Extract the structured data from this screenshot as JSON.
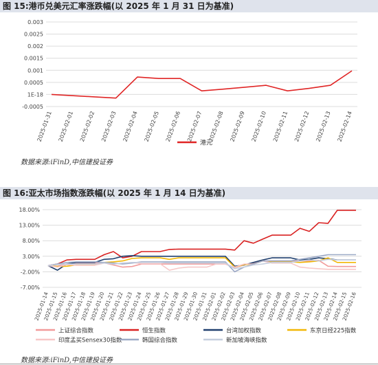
{
  "fig15": {
    "title": "图 15:港币兑美元汇率涨跌幅(以 2025 年 1 月 31 日为基准)",
    "source": "数据来源:iFinD,中信建投证券"
  },
  "fig16": {
    "title": "图 16:亚太市场指数涨跌幅(以 2025 年 1 月 14 日为基准)",
    "source": "数据来源:iFinD,中信建投证券"
  },
  "chart_data": [
    {
      "type": "line",
      "title": "",
      "xlabel": "",
      "ylabel": "",
      "x": [
        "2025-01-31",
        "2025-02-01",
        "2025-02-02",
        "2025-02-03",
        "2025-02-04",
        "2025-02-05",
        "2025-02-06",
        "2025-02-07",
        "2025-02-08",
        "2025-02-09",
        "2025-02-10",
        "2025-02-11",
        "2025-02-12",
        "2025-02-13",
        "2025-02-14"
      ],
      "y_ticks": [
        "0.003",
        "0.0025",
        "0.002",
        "0.0015",
        "0.001",
        "0.0005",
        "1E-18",
        "-0.0005"
      ],
      "ylim": [
        -0.0005,
        0.003
      ],
      "grid": true,
      "legend": "bottom",
      "series": [
        {
          "name": "港元",
          "color": "#e02424",
          "values": [
            0.0,
            -5e-05,
            -0.0001,
            -0.00015,
            0.00072,
            0.00066,
            0.00066,
            0.00015,
            0.00022,
            0.0003,
            0.00038,
            0.00015,
            0.00025,
            0.00038,
            0.00098
          ]
        }
      ]
    },
    {
      "type": "line",
      "title": "",
      "xlabel": "",
      "ylabel": "",
      "x": [
        "2025-01-14",
        "2025-01-15",
        "2025-01-16",
        "2025-01-17",
        "2025-01-18",
        "2025-01-19",
        "2025-01-20",
        "2025-01-21",
        "2025-01-22",
        "2025-01-23",
        "2025-01-24",
        "2025-01-25",
        "2025-01-26",
        "2025-01-27",
        "2025-01-28",
        "2025-01-29",
        "2025-01-30",
        "2025-01-31",
        "2025-02-01",
        "2025-02-02",
        "2025-02-03",
        "2025-02-04",
        "2025-02-05",
        "2025-02-06",
        "2025-02-07",
        "2025-02-08",
        "2025-02-09",
        "2025-02-10",
        "2025-02-11",
        "2025-02-12",
        "2025-02-13",
        "2025-02-14",
        "2025-02-15",
        "2025-02-16"
      ],
      "y_ticks": [
        "18.00%",
        "13.00%",
        "8.00%",
        "3.00%",
        "-2.00%",
        "-7.00%"
      ],
      "ylim": [
        -7,
        18
      ],
      "grid": true,
      "legend": "bottom",
      "series": [
        {
          "name": "上证综合指数",
          "color": "#f29a9a",
          "values": [
            0,
            -0.2,
            0.5,
            0.8,
            0.8,
            0.8,
            0.9,
            0.2,
            -0.5,
            -0.3,
            0.5,
            0.5,
            0.5,
            0.5,
            0.5,
            0.5,
            0.5,
            0.5,
            0.5,
            0.5,
            -0.6,
            0.2,
            0.8,
            1.5,
            1.5,
            1.5,
            1.5,
            1.5,
            1.5,
            1.7,
            -0.2,
            -0.3,
            -0.3,
            -0.3
          ]
        },
        {
          "name": "恒生指数",
          "color": "#d92121",
          "values": [
            0,
            0.5,
            1.8,
            2.0,
            2.0,
            2.0,
            3.5,
            4.5,
            2.5,
            3.0,
            4.5,
            4.5,
            4.5,
            5.2,
            5.3,
            5.3,
            5.3,
            5.3,
            5.3,
            5.3,
            5.0,
            8.0,
            7.2,
            8.5,
            9.8,
            9.8,
            9.8,
            12.0,
            11.0,
            13.8,
            13.6,
            17.8,
            17.8,
            17.8
          ]
        },
        {
          "name": "台湾加权指数",
          "color": "#1f3f6e",
          "values": [
            0,
            -1.5,
            0.5,
            1.0,
            1.0,
            1.0,
            2.0,
            2.2,
            3.0,
            3.2,
            3.0,
            3.0,
            3.0,
            3.0,
            3.0,
            3.0,
            3.0,
            3.0,
            3.0,
            3.0,
            -0.2,
            0.2,
            1.0,
            1.8,
            2.5,
            2.5,
            2.5,
            1.8,
            2.0,
            2.5,
            2.2,
            1.8,
            1.8,
            1.8
          ]
        },
        {
          "name": "东京日经225指数",
          "color": "#f2b705",
          "values": [
            0,
            -0.3,
            -0.2,
            0.2,
            0.2,
            0.2,
            1.0,
            1.2,
            1.5,
            2.3,
            2.5,
            2.5,
            2.5,
            2.0,
            2.5,
            2.5,
            2.5,
            2.5,
            2.5,
            2.5,
            -0.5,
            0.3,
            0.5,
            1.5,
            1.2,
            1.2,
            1.2,
            1.0,
            1.2,
            1.5,
            2.5,
            1.0,
            1.0,
            1.0
          ]
        },
        {
          "name": "印度孟买Sensex30指数",
          "color": "#f7c7c7",
          "values": [
            0,
            -0.5,
            0.3,
            0.1,
            0.1,
            0.1,
            0.8,
            0.5,
            0.7,
            1.0,
            0.6,
            0.6,
            0.6,
            -1.5,
            -0.8,
            -0.5,
            -0.5,
            -0.5,
            0.5,
            0.5,
            -0.5,
            0.5,
            0.5,
            1.5,
            0.8,
            0.8,
            0.8,
            -0.5,
            -0.8,
            -1.0,
            -1.2,
            -1.2,
            -1.2,
            -1.2
          ]
        },
        {
          "name": "韩国综合指数",
          "color": "#9ca9c6",
          "values": [
            0,
            0.5,
            1.0,
            1.2,
            1.2,
            1.2,
            1.0,
            0.8,
            0.5,
            0.8,
            1.2,
            1.2,
            1.2,
            1.2,
            1.2,
            1.2,
            1.2,
            1.2,
            1.2,
            1.2,
            -2.0,
            -0.5,
            0.5,
            1.5,
            1.5,
            1.5,
            1.5,
            2.0,
            2.5,
            3.0,
            3.5,
            3.5,
            3.5,
            3.5
          ]
        },
        {
          "name": "新加坡海峡指数",
          "color": "#c5cede",
          "values": [
            0,
            0.3,
            0.5,
            0.5,
            0.5,
            0.5,
            0.8,
            0.5,
            0.8,
            1.0,
            1.0,
            1.0,
            1.0,
            0.8,
            0.8,
            0.8,
            0.8,
            0.8,
            0.8,
            0.8,
            -1.0,
            -0.5,
            0.2,
            0.5,
            1.0,
            1.0,
            1.0,
            1.5,
            1.8,
            1.5,
            2.0,
            1.8,
            1.8,
            1.8
          ]
        }
      ]
    }
  ]
}
